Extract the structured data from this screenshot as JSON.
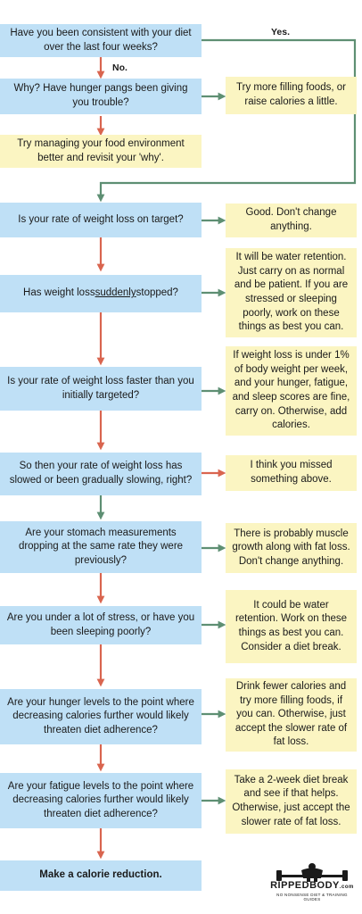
{
  "questions": [
    "Have you been consistent with your diet over the last four weeks?",
    "Why? Have hunger pangs been giving you trouble?",
    "Try managing your food environment better and revisit your 'why'.",
    "Is your rate of weight loss on target?",
    "Has weight loss suddenly stopped?",
    "Is your rate of weight loss faster than you initially targeted?",
    "So then your rate of weight loss has slowed or been gradually slowing, right?",
    "Are your stomach measurements dropping at the same rate they were previously?",
    "Are you under a lot of stress, or have you been sleeping poorly?",
    "Are your hunger levels to the point where decreasing calories further would likely threaten diet adherence?",
    "Are your fatigue levels to the point where decreasing calories further would likely threaten diet adherence?",
    "Make a calorie reduction."
  ],
  "q5_parts": {
    "before": "Has weight loss ",
    "underlined": "suddenly",
    "after": " stopped?"
  },
  "answers": [
    "Try more filling foods, or raise calories a little.",
    "Good. Don't change anything.",
    "It will be water retention. Just carry on as normal and be patient. If you are stressed or sleeping poorly, work on these things as best you can.",
    "If weight loss is under 1% of body weight per week, and your hunger, fatigue, and sleep scores are fine, carry on. Otherwise, add calories.",
    "I think you missed something above.",
    "There is probably muscle growth along with fat loss. Don't change anything.",
    "It could be water retention. Work on these things as best you can. Consider a diet break.",
    "Drink fewer calories and try more filling foods, if you can. Otherwise, just accept the slower rate of fat loss.",
    "Take a 2-week diet break and see if that helps. Otherwise, just accept the slower rate of fat loss."
  ],
  "labels": {
    "yes": "Yes.",
    "no": "No."
  },
  "brand": {
    "name": "RIPPEDBODY",
    "suffix": ".com",
    "tagline": "NO NONSENSE DIET & TRAINING GUIDES"
  },
  "colors": {
    "question": "#bfe0f6",
    "answer": "#fbf5c2",
    "arrow_red": "#d9654f",
    "arrow_green": "#5e8f73"
  }
}
